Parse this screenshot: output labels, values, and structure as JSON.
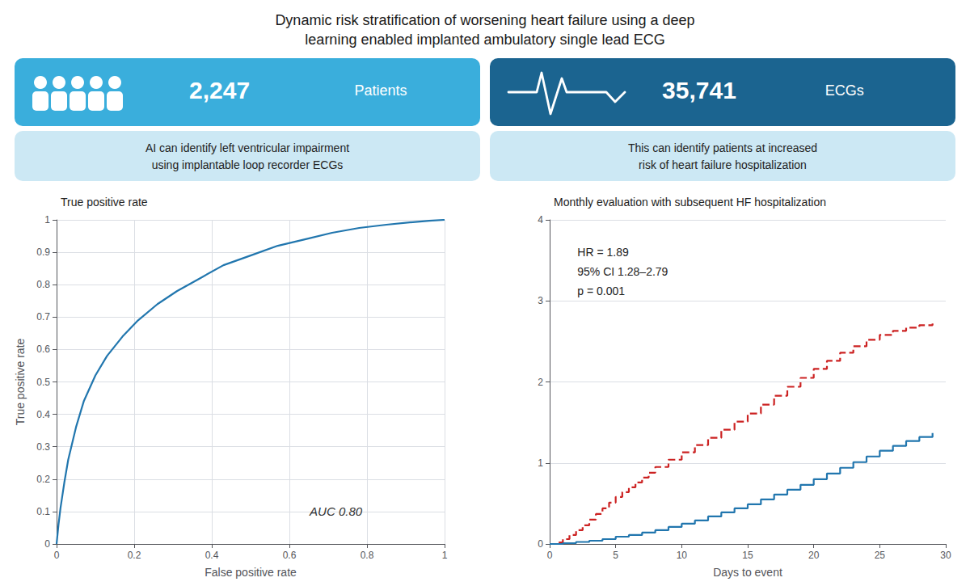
{
  "title": "Dynamic risk stratification of worsening heart failure using a deep\nlearning enabled implanted ambulatory single lead ECG",
  "annotations": [
    "2,247",
    "Patients",
    "35,741",
    "ECGs",
    "AI can identify left ventricular impairment\nusing implantable loop recorder ECGs",
    "This can identify patients at increased\nrisk of heart failure hospitalization"
  ],
  "chart_data": [
    {
      "type": "line",
      "title": "True positive rate",
      "x": [
        0.0,
        0.005,
        0.01,
        0.02,
        0.03,
        0.05,
        0.07,
        0.1,
        0.13,
        0.17,
        0.21,
        0.26,
        0.31,
        0.37,
        0.43,
        0.5,
        0.57,
        0.64,
        0.71,
        0.78,
        0.85,
        0.91,
        0.96,
        1.0
      ],
      "values": [
        0.0,
        0.06,
        0.11,
        0.19,
        0.26,
        0.36,
        0.44,
        0.52,
        0.58,
        0.64,
        0.69,
        0.74,
        0.78,
        0.82,
        0.86,
        0.89,
        0.92,
        0.94,
        0.96,
        0.975,
        0.985,
        0.992,
        0.997,
        1.0
      ],
      "color": "#2176ae",
      "xlabel": "False positive rate",
      "ylabel": "True positive rate",
      "xlim": [
        0,
        1
      ],
      "ylim": [
        0,
        1
      ],
      "xticks": [
        0,
        0.2,
        0.4,
        0.6,
        0.8,
        1
      ],
      "yticks": [
        0,
        0.1,
        0.2,
        0.3,
        0.4,
        0.5,
        0.6,
        0.7,
        0.8,
        0.9,
        1
      ],
      "grid": true,
      "annotations": [
        "AUC 0.80"
      ]
    },
    {
      "type": "step",
      "title": "Monthly evaluation with subsequent HF hospitalization",
      "xlabel": "Days to event",
      "xlim": [
        0,
        30
      ],
      "ylim": [
        0,
        4
      ],
      "xticks": [
        0,
        5,
        10,
        15,
        20,
        25,
        30
      ],
      "yticks": [
        0,
        1,
        2,
        3,
        4
      ],
      "grid": "y",
      "series": [
        {
          "color": "#cc2222",
          "line_style": "dashed",
          "x": [
            0,
            0.5,
            1,
            1.5,
            2,
            2.5,
            3,
            3.5,
            4,
            4.5,
            5,
            5.5,
            6,
            6.5,
            7,
            7.5,
            8,
            9,
            10,
            11,
            12,
            13,
            14,
            15,
            16,
            17,
            18,
            19,
            20,
            21,
            22,
            23,
            24,
            25,
            26,
            27,
            28,
            29
          ],
          "values": [
            0,
            0.02,
            0.06,
            0.11,
            0.17,
            0.23,
            0.3,
            0.37,
            0.44,
            0.51,
            0.58,
            0.64,
            0.7,
            0.76,
            0.82,
            0.88,
            0.95,
            1.04,
            1.13,
            1.22,
            1.31,
            1.41,
            1.51,
            1.61,
            1.72,
            1.83,
            1.94,
            2.05,
            2.16,
            2.26,
            2.36,
            2.44,
            2.52,
            2.58,
            2.63,
            2.67,
            2.7,
            2.72
          ]
        },
        {
          "color": "#2176ae",
          "line_style": "solid",
          "x": [
            0,
            1,
            2,
            3,
            4,
            5,
            6,
            7,
            8,
            9,
            10,
            11,
            12,
            13,
            14,
            15,
            16,
            17,
            18,
            19,
            20,
            21,
            22,
            23,
            24,
            25,
            26,
            27,
            28,
            29
          ],
          "values": [
            0,
            0.01,
            0.025,
            0.04,
            0.06,
            0.09,
            0.11,
            0.14,
            0.17,
            0.21,
            0.25,
            0.29,
            0.34,
            0.39,
            0.44,
            0.49,
            0.55,
            0.61,
            0.67,
            0.73,
            0.8,
            0.87,
            0.94,
            1.01,
            1.08,
            1.15,
            1.21,
            1.27,
            1.32,
            1.37
          ]
        }
      ],
      "annotations": [
        "HR = 1.89",
        "95% CI 1.28–2.79",
        "p = 0.001"
      ]
    }
  ]
}
